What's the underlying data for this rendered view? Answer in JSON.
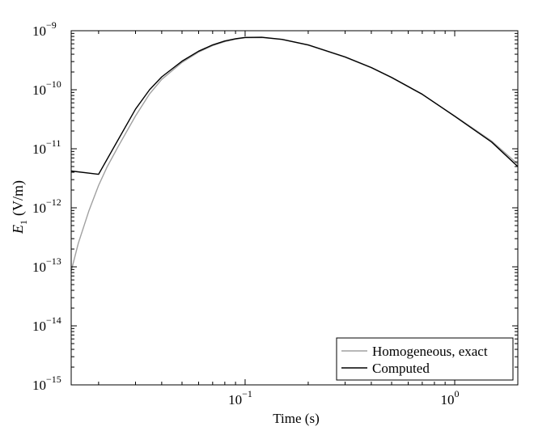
{
  "chart_data": {
    "type": "line",
    "title": "",
    "xlabel": "Time (s)",
    "ylabel_main": "E",
    "ylabel_sub": "1",
    "ylabel_unit": "(V/m)",
    "x_scale": "log",
    "y_scale": "log",
    "xlim": [
      0.0148,
      2.0
    ],
    "ylim": [
      1e-15,
      1e-09
    ],
    "grid": false,
    "legend_position": "bottom-right",
    "x_ticks": [
      {
        "value": 0.1,
        "base": "10",
        "exp": "−1"
      },
      {
        "value": 1,
        "base": "10",
        "exp": "0"
      }
    ],
    "y_ticks": [
      {
        "value": 1e-09,
        "base": "10",
        "exp": "−9"
      },
      {
        "value": 1e-10,
        "base": "10",
        "exp": "−10"
      },
      {
        "value": 1e-11,
        "base": "10",
        "exp": "−11"
      },
      {
        "value": 1e-12,
        "base": "10",
        "exp": "−12"
      },
      {
        "value": 1e-13,
        "base": "10",
        "exp": "−13"
      },
      {
        "value": 1e-14,
        "base": "10",
        "exp": "−14"
      },
      {
        "value": 1e-15,
        "base": "10",
        "exp": "−15"
      }
    ],
    "series": [
      {
        "name": "Homogeneous, exact",
        "color": "#a0a0a0",
        "points": [
          [
            0.0148,
            8.5e-14
          ],
          [
            0.016,
            2.5e-13
          ],
          [
            0.018,
            9e-13
          ],
          [
            0.02,
            2.4e-12
          ],
          [
            0.022,
            5e-12
          ],
          [
            0.025,
            1.15e-11
          ],
          [
            0.03,
            3.6e-11
          ],
          [
            0.035,
            8.5e-11
          ],
          [
            0.04,
            1.5e-10
          ],
          [
            0.05,
            2.9e-10
          ],
          [
            0.06,
            4.35e-10
          ],
          [
            0.07,
            5.6e-10
          ],
          [
            0.08,
            6.55e-10
          ],
          [
            0.09,
            7.2e-10
          ],
          [
            0.1,
            7.6e-10
          ],
          [
            0.12,
            7.65e-10
          ],
          [
            0.15,
            7.1e-10
          ],
          [
            0.2,
            5.7e-10
          ],
          [
            0.3,
            3.55e-10
          ],
          [
            0.4,
            2.35e-10
          ],
          [
            0.5,
            1.6e-10
          ],
          [
            0.7,
            8.3e-11
          ],
          [
            1.0,
            3.6e-11
          ],
          [
            1.5,
            1.35e-11
          ],
          [
            2.0,
            5.5e-12
          ]
        ]
      },
      {
        "name": "Computed",
        "color": "#000000",
        "points": [
          [
            0.0148,
            4.2e-12
          ],
          [
            0.02,
            3.7e-12
          ],
          [
            0.025,
            1.5e-11
          ],
          [
            0.03,
            4.7e-11
          ],
          [
            0.035,
            1e-10
          ],
          [
            0.04,
            1.65e-10
          ],
          [
            0.05,
            3.05e-10
          ],
          [
            0.06,
            4.5e-10
          ],
          [
            0.07,
            5.75e-10
          ],
          [
            0.08,
            6.7e-10
          ],
          [
            0.09,
            7.3e-10
          ],
          [
            0.1,
            7.7e-10
          ],
          [
            0.12,
            7.75e-10
          ],
          [
            0.15,
            7.15e-10
          ],
          [
            0.2,
            5.75e-10
          ],
          [
            0.3,
            3.6e-10
          ],
          [
            0.4,
            2.38e-10
          ],
          [
            0.5,
            1.62e-10
          ],
          [
            0.7,
            8.4e-11
          ],
          [
            1.0,
            3.55e-11
          ],
          [
            1.5,
            1.3e-11
          ],
          [
            2.0,
            5e-12
          ]
        ]
      }
    ]
  }
}
